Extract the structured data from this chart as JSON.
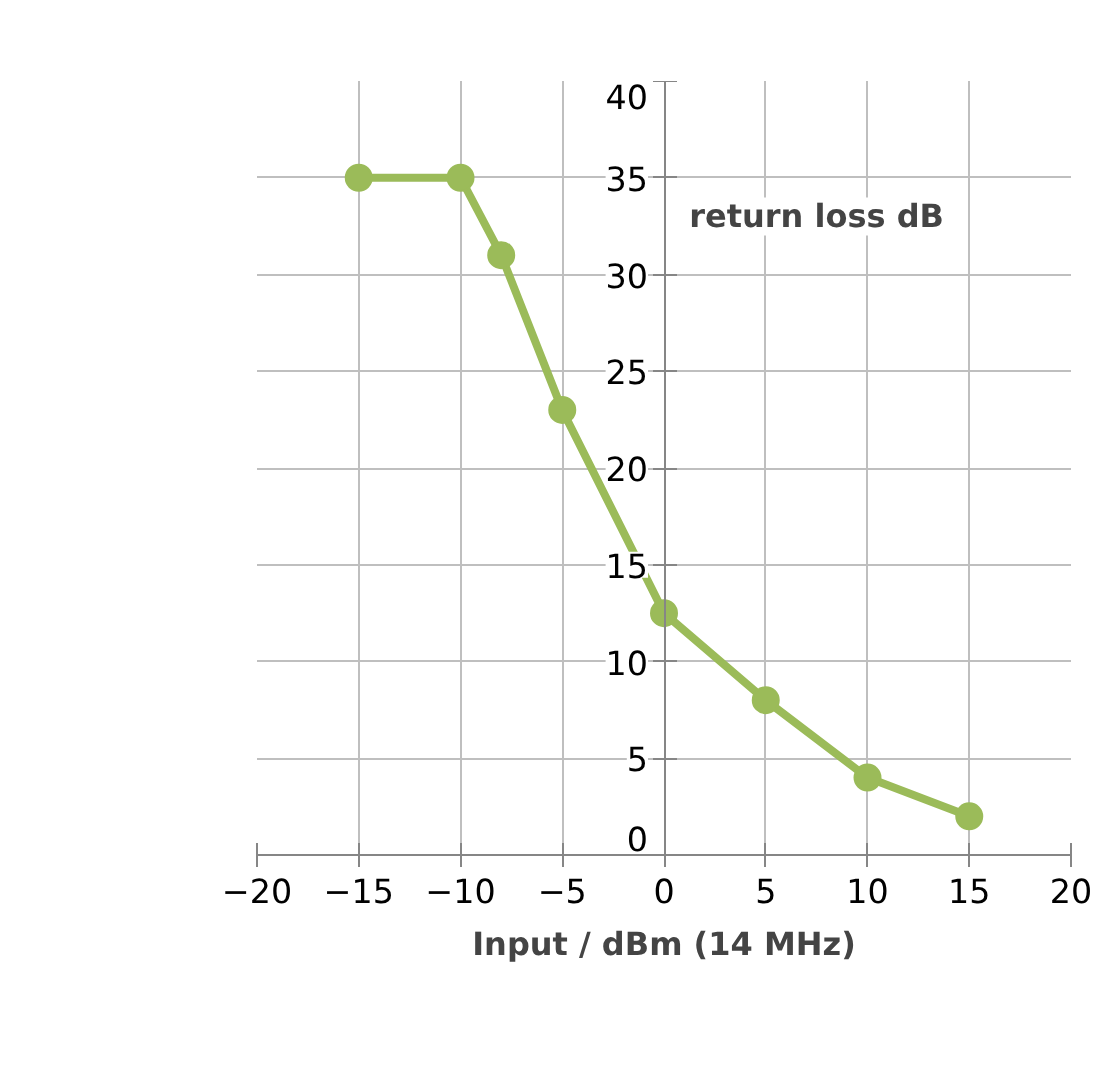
{
  "chart_data": {
    "type": "line",
    "xlabel": "Input / dBm (14 MHz)",
    "ylabel": "return loss dB",
    "x": [
      -15,
      -10,
      -8,
      -5,
      0,
      5,
      10,
      15
    ],
    "series": [
      {
        "color": "#9bbb59",
        "values": [
          35,
          35,
          31,
          23,
          12.5,
          8,
          4,
          2
        ]
      }
    ],
    "xlim": [
      -20,
      20
    ],
    "xticks": [
      -20,
      -15,
      -10,
      -5,
      0,
      5,
      10,
      15,
      20
    ],
    "ylim": [
      0,
      40
    ],
    "yticks": [
      0,
      5,
      10,
      15,
      20,
      25,
      30,
      35,
      40
    ],
    "grid": true,
    "marker": "circle",
    "line_style": "solid"
  }
}
